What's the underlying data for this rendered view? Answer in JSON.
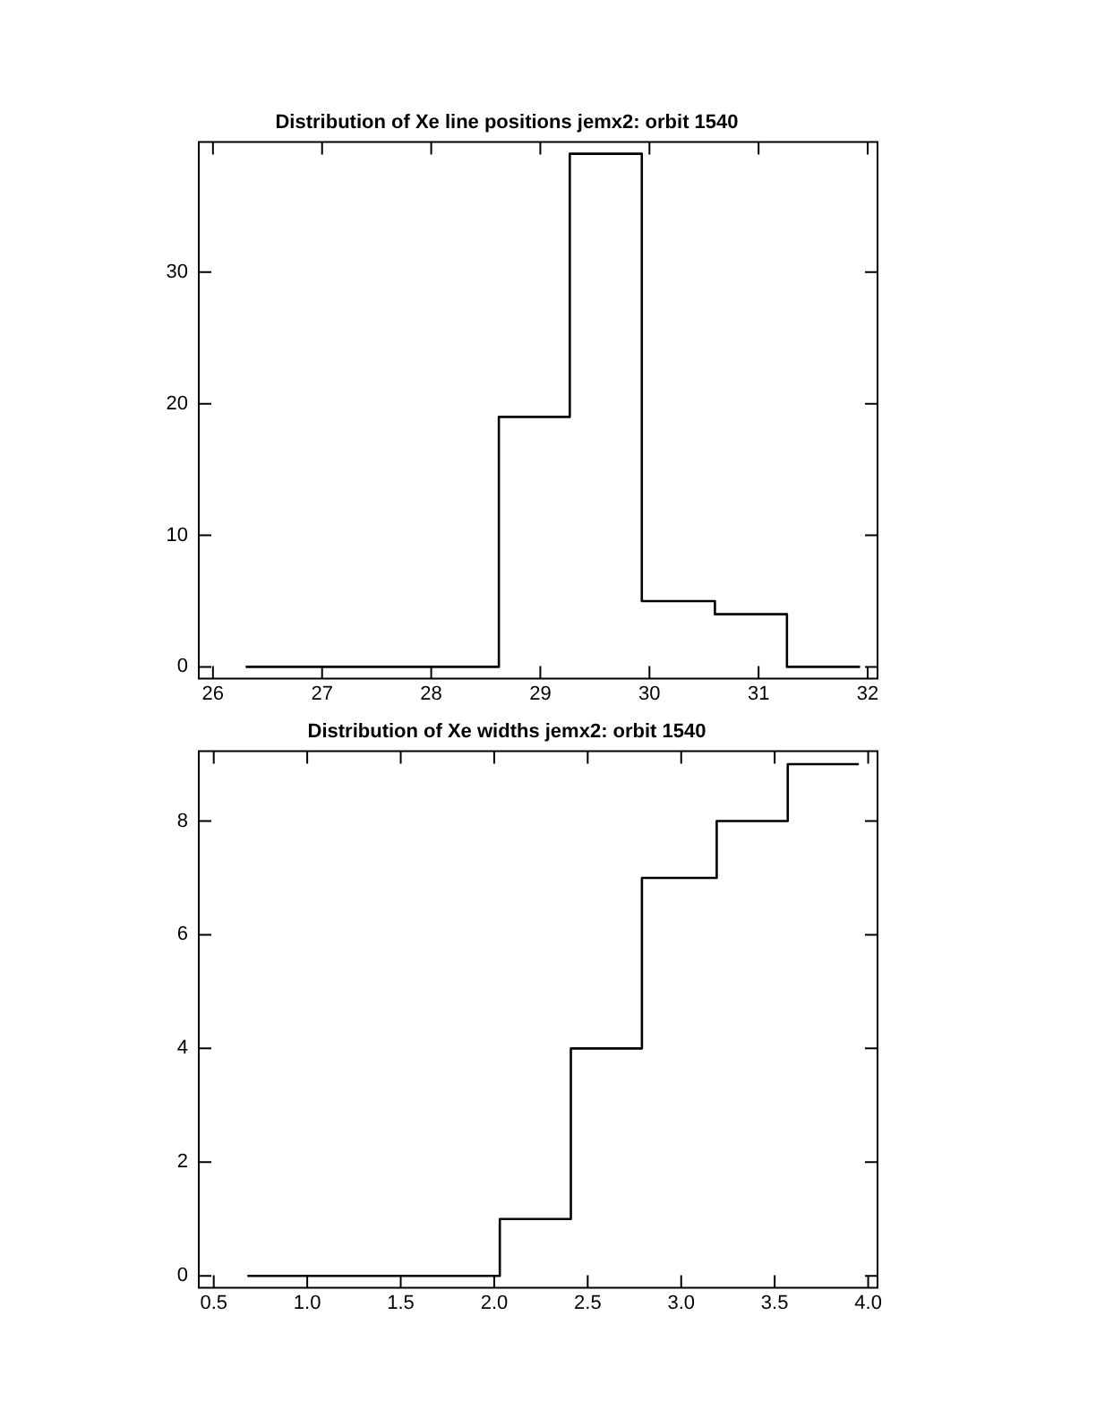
{
  "chart_data": [
    {
      "type": "histogram",
      "title": "Distribution of Xe line positions jemx2: orbit 1540",
      "bins": [
        26.3,
        28.62,
        29.27,
        29.93,
        30.6,
        31.26,
        31.93
      ],
      "values": [
        0,
        19,
        39,
        5,
        4,
        0
      ],
      "color": "#000000",
      "xlim": [
        25.87,
        32.09
      ],
      "xticks": [
        26,
        27,
        28,
        29,
        30,
        31,
        32
      ],
      "ylim": [
        -0.9,
        39.9
      ],
      "yticks": [
        0,
        10,
        20,
        30
      ]
    },
    {
      "type": "histogram",
      "title": "Distribution of Xe widths jemx2: orbit 1540",
      "bins": [
        0.68,
        2.03,
        2.41,
        2.79,
        3.19,
        3.57,
        3.95
      ],
      "values": [
        0,
        1,
        4,
        7,
        8,
        9
      ],
      "color": "#000000",
      "xlim": [
        0.42,
        4.05
      ],
      "xticks": [
        {
          "value": 0.5,
          "label": "0.5"
        },
        {
          "value": 1,
          "label": "1.0"
        },
        {
          "value": 1.5,
          "label": "1.5"
        },
        {
          "value": 2,
          "label": "2.0"
        },
        {
          "value": 2.5,
          "label": "2.5"
        },
        {
          "value": 3,
          "label": "3.0"
        },
        {
          "value": 3.5,
          "label": "3.5"
        },
        {
          "value": 4,
          "label": "4.0"
        }
      ],
      "ylim": [
        -0.21,
        9.23
      ],
      "yticks": [
        0,
        2,
        4,
        6,
        8
      ]
    }
  ]
}
